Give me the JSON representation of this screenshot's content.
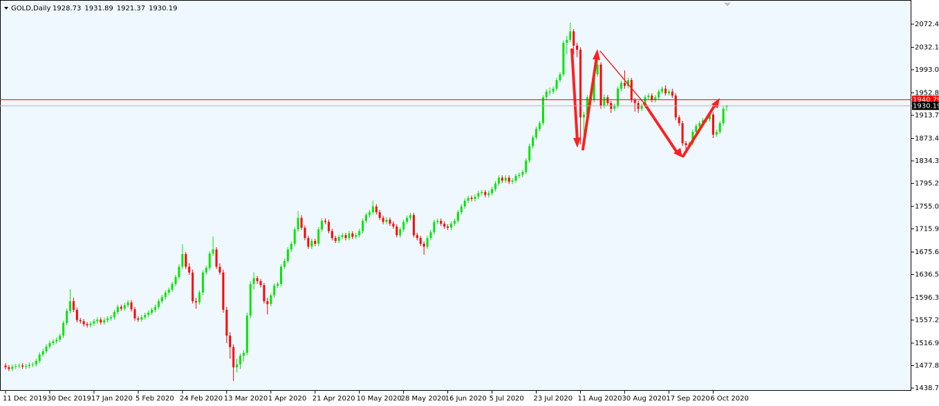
{
  "chart_data": {
    "type": "candlestick",
    "title": "GOLD,Daily",
    "header_values": [
      1928.73,
      1931.89,
      1921.37,
      1930.19
    ],
    "up_color": "#00e600",
    "down_color": "#ff0000",
    "background": "#f0f8ff",
    "ylim": [
      1433.94,
      2109.67
    ],
    "yticks": [
      1438.75,
      1477.85,
      1516.95,
      {
        "value": 1557.2,
        "label": "1557.20"
      },
      {
        "value": 1596.3,
        "label": "1596.30"
      },
      1636.55,
      1675.65,
      {
        "value": 1715.9,
        "label": "1715.90"
      },
      {
        "value": 1755,
        "label": "1755.00"
      },
      1795.25,
      1834.35,
      1873.45,
      {
        "value": 1913.7,
        "label": "1913.70"
      },
      {
        "value": 1952.8,
        "label": "1952.80"
      },
      1993.05,
      2032.15,
      {
        "value": 2072.4,
        "label": "2072.40"
      }
    ],
    "price_lines": [
      {
        "value": 1940.79,
        "color": "#ff0000"
      },
      {
        "value": 1930.19,
        "color": "#b0b0b0"
      }
    ],
    "categories": [
      "11 Dec 2019",
      null,
      null,
      null,
      null,
      null,
      null,
      null,
      null,
      null,
      null,
      null,
      null,
      "30 Dec 2019",
      null,
      null,
      null,
      null,
      null,
      null,
      null,
      null,
      null,
      null,
      null,
      null,
      "17 Jan 2020",
      null,
      null,
      null,
      null,
      null,
      null,
      null,
      null,
      null,
      null,
      null,
      null,
      "5 Feb 2020",
      null,
      null,
      null,
      null,
      null,
      null,
      null,
      null,
      null,
      null,
      null,
      null,
      "24 Feb 2020",
      null,
      null,
      null,
      null,
      null,
      null,
      null,
      null,
      null,
      null,
      null,
      null,
      "13 Mar 2020",
      null,
      null,
      null,
      null,
      null,
      null,
      null,
      null,
      null,
      null,
      null,
      null,
      "1 Apr 2020",
      null,
      null,
      null,
      null,
      null,
      null,
      null,
      null,
      null,
      null,
      null,
      null,
      "21 Apr 2020",
      null,
      null,
      null,
      null,
      null,
      null,
      null,
      null,
      null,
      null,
      null,
      null,
      "10 May 2020",
      null,
      null,
      null,
      null,
      null,
      null,
      null,
      null,
      null,
      null,
      null,
      null,
      "28 May 2020",
      null,
      null,
      null,
      null,
      null,
      null,
      null,
      null,
      null,
      null,
      null,
      null,
      "16 Jun 2020",
      null,
      null,
      null,
      null,
      null,
      null,
      null,
      null,
      null,
      null,
      null,
      null,
      "5 Jul 2020",
      null,
      null,
      null,
      null,
      null,
      null,
      null,
      null,
      null,
      null,
      null,
      null,
      "23 Jul 2020",
      null,
      null,
      null,
      null,
      null,
      null,
      null,
      null,
      null,
      null,
      null,
      null,
      "11 Aug 2020",
      null,
      null,
      null,
      null,
      null,
      null,
      null,
      null,
      null,
      null,
      null,
      null,
      "30 Aug 2020",
      null,
      null,
      null,
      null,
      null,
      null,
      null,
      null,
      null,
      null,
      null,
      null,
      "17 Sep 2020",
      null,
      null,
      null,
      null,
      null,
      null,
      null,
      null,
      null,
      null,
      null,
      null,
      "6 Oct 2020",
      null,
      null,
      null,
      null
    ],
    "open": [
      1478,
      1475,
      1472,
      1476,
      1477,
      1478,
      1476,
      1477,
      1479,
      1480,
      1486,
      1497,
      1503,
      1511,
      1517,
      1520,
      1523,
      1530,
      1552,
      1573,
      1590,
      1575,
      1557,
      1555,
      1550,
      1548,
      1551,
      1555,
      1558,
      1553,
      1557,
      1560,
      1562,
      1571,
      1580,
      1577,
      1583,
      1588,
      1576,
      1560,
      1558,
      1562,
      1566,
      1570,
      1575,
      1580,
      1590,
      1597,
      1605,
      1610,
      1620,
      1632,
      1650,
      1672,
      1650,
      1640,
      1590,
      1588,
      1605,
      1640,
      1648,
      1673,
      1680,
      1650,
      1640,
      1575,
      1530,
      1510,
      1475,
      1480,
      1495,
      1500,
      1565,
      1620,
      1630,
      1625,
      1618,
      1590,
      1585,
      1600,
      1617,
      1620,
      1650,
      1660,
      1680,
      1690,
      1715,
      1735,
      1718,
      1700,
      1685,
      1695,
      1690,
      1715,
      1730,
      1728,
      1712,
      1700,
      1695,
      1702,
      1705,
      1700,
      1708,
      1702,
      1705,
      1712,
      1730,
      1740,
      1745,
      1755,
      1745,
      1735,
      1728,
      1732,
      1725,
      1720,
      1705,
      1715,
      1728,
      1735,
      1740,
      1705,
      1700,
      1690,
      1685,
      1700,
      1710,
      1728,
      1730,
      1725,
      1720,
      1718,
      1725,
      1730,
      1745,
      1755,
      1765,
      1770,
      1768,
      1772,
      1778,
      1780,
      1775,
      1778,
      1785,
      1795,
      1805,
      1800,
      1805,
      1798,
      1800,
      1808,
      1810,
      1815,
      1835,
      1860,
      1875,
      1890,
      1900,
      1945,
      1955,
      1955,
      1960,
      1975,
      1985,
      2040,
      2045,
      2060,
      2035,
      2028,
      1910,
      1915,
      1945,
      1940,
      1985,
      2002,
      1930,
      1945,
      1935,
      1925,
      1930,
      1960,
      1970,
      1965,
      1975,
      1940,
      1935,
      1925,
      1930,
      1945,
      1948,
      1940,
      1945,
      1955,
      1960,
      1952,
      1955,
      1948,
      1910,
      1900,
      1865,
      1862,
      1865,
      1885,
      1895,
      1900,
      1905,
      1907,
      1915,
      1880,
      1885,
      1900,
      1928.73
    ],
    "high": [
      1482,
      1479,
      1480,
      1481,
      1482,
      1482,
      1481,
      1483,
      1484,
      1490,
      1501,
      1507,
      1515,
      1521,
      1524,
      1527,
      1534,
      1556,
      1577,
      1611,
      1596,
      1579,
      1561,
      1559,
      1554,
      1555,
      1559,
      1562,
      1562,
      1561,
      1564,
      1566,
      1575,
      1584,
      1584,
      1587,
      1592,
      1592,
      1580,
      1564,
      1566,
      1570,
      1574,
      1579,
      1584,
      1594,
      1601,
      1609,
      1614,
      1624,
      1636,
      1654,
      1689,
      1676,
      1656,
      1645,
      1596,
      1609,
      1644,
      1652,
      1677,
      1703,
      1684,
      1656,
      1645,
      1580,
      1536,
      1515,
      1490,
      1499,
      1505,
      1570,
      1625,
      1640,
      1634,
      1629,
      1622,
      1596,
      1604,
      1621,
      1624,
      1654,
      1664,
      1684,
      1694,
      1719,
      1747,
      1740,
      1722,
      1704,
      1699,
      1699,
      1719,
      1734,
      1734,
      1732,
      1716,
      1704,
      1706,
      1709,
      1709,
      1712,
      1712,
      1709,
      1716,
      1734,
      1744,
      1749,
      1765,
      1759,
      1749,
      1739,
      1736,
      1736,
      1729,
      1724,
      1719,
      1732,
      1739,
      1744,
      1744,
      1709,
      1704,
      1694,
      1704,
      1714,
      1732,
      1734,
      1734,
      1729,
      1724,
      1729,
      1734,
      1749,
      1759,
      1769,
      1774,
      1774,
      1776,
      1782,
      1784,
      1784,
      1782,
      1789,
      1799,
      1809,
      1809,
      1809,
      1809,
      1804,
      1812,
      1814,
      1819,
      1839,
      1864,
      1879,
      1894,
      1904,
      1949,
      1959,
      1962,
      1964,
      1979,
      1989,
      2044,
      2052,
      2075,
      2064,
      2040,
      2032,
      1920,
      1949,
      1950,
      1989,
      2015,
      2006,
      1950,
      1949,
      1939,
      1934,
      1964,
      1974,
      1992,
      1979,
      1979,
      1944,
      1939,
      1934,
      1949,
      1952,
      1952,
      1949,
      1959,
      1964,
      1966,
      1959,
      1960,
      1952,
      1914,
      1904,
      1869,
      1868,
      1889,
      1899,
      1904,
      1909,
      1911,
      1919,
      1919,
      1889,
      1904,
      1929,
      1931.89
    ],
    "low": [
      1471,
      1468,
      1468,
      1472,
      1473,
      1472,
      1472,
      1473,
      1475,
      1476,
      1482,
      1493,
      1499,
      1507,
      1513,
      1516,
      1519,
      1526,
      1548,
      1569,
      1571,
      1553,
      1551,
      1546,
      1544,
      1544,
      1547,
      1551,
      1549,
      1549,
      1553,
      1556,
      1558,
      1567,
      1573,
      1573,
      1579,
      1572,
      1556,
      1554,
      1554,
      1558,
      1562,
      1566,
      1571,
      1576,
      1586,
      1593,
      1601,
      1606,
      1616,
      1628,
      1646,
      1646,
      1636,
      1586,
      1577,
      1584,
      1601,
      1636,
      1644,
      1669,
      1646,
      1636,
      1570,
      1517,
      1490,
      1451,
      1466,
      1472,
      1485,
      1496,
      1560,
      1610,
      1620,
      1614,
      1586,
      1567,
      1581,
      1596,
      1613,
      1616,
      1646,
      1656,
      1676,
      1686,
      1711,
      1714,
      1696,
      1681,
      1681,
      1686,
      1686,
      1711,
      1724,
      1708,
      1696,
      1691,
      1691,
      1698,
      1696,
      1696,
      1698,
      1698,
      1701,
      1708,
      1726,
      1736,
      1741,
      1741,
      1731,
      1724,
      1724,
      1721,
      1716,
      1701,
      1701,
      1711,
      1724,
      1731,
      1701,
      1696,
      1686,
      1671,
      1681,
      1696,
      1706,
      1724,
      1721,
      1716,
      1714,
      1714,
      1721,
      1726,
      1741,
      1751,
      1761,
      1764,
      1764,
      1768,
      1774,
      1771,
      1771,
      1774,
      1781,
      1791,
      1796,
      1796,
      1794,
      1794,
      1796,
      1804,
      1806,
      1811,
      1831,
      1856,
      1871,
      1886,
      1896,
      1941,
      1948,
      1951,
      1956,
      1971,
      1981,
      2020,
      2041,
      2020,
      2015,
      1863,
      1874,
      1911,
      1930,
      1936,
      1981,
      1925,
      1926,
      1931,
      1918,
      1921,
      1926,
      1956,
      1960,
      1961,
      1936,
      1920,
      1918,
      1921,
      1926,
      1941,
      1936,
      1936,
      1941,
      1951,
      1948,
      1948,
      1944,
      1905,
      1895,
      1860,
      1849,
      1855,
      1861,
      1881,
      1891,
      1896,
      1901,
      1903,
      1874,
      1876,
      1881,
      1896,
      1921.37
    ],
    "close": [
      1475,
      1472,
      1476,
      1477,
      1478,
      1476,
      1477,
      1479,
      1480,
      1486,
      1497,
      1503,
      1511,
      1517,
      1520,
      1523,
      1530,
      1552,
      1573,
      1590,
      1575,
      1557,
      1555,
      1550,
      1548,
      1551,
      1555,
      1558,
      1553,
      1557,
      1560,
      1562,
      1571,
      1580,
      1577,
      1583,
      1588,
      1576,
      1560,
      1558,
      1562,
      1566,
      1570,
      1575,
      1580,
      1590,
      1597,
      1605,
      1610,
      1620,
      1632,
      1650,
      1672,
      1650,
      1640,
      1590,
      1588,
      1605,
      1640,
      1648,
      1673,
      1680,
      1650,
      1640,
      1575,
      1530,
      1510,
      1475,
      1480,
      1495,
      1500,
      1565,
      1620,
      1630,
      1625,
      1618,
      1590,
      1585,
      1600,
      1617,
      1620,
      1650,
      1660,
      1680,
      1690,
      1715,
      1735,
      1718,
      1700,
      1685,
      1695,
      1690,
      1715,
      1730,
      1728,
      1712,
      1700,
      1695,
      1702,
      1705,
      1700,
      1708,
      1702,
      1705,
      1712,
      1730,
      1740,
      1745,
      1755,
      1745,
      1735,
      1728,
      1732,
      1725,
      1720,
      1705,
      1715,
      1728,
      1735,
      1740,
      1705,
      1700,
      1690,
      1685,
      1700,
      1710,
      1728,
      1730,
      1725,
      1720,
      1718,
      1725,
      1730,
      1745,
      1755,
      1765,
      1770,
      1768,
      1772,
      1778,
      1780,
      1775,
      1778,
      1785,
      1795,
      1805,
      1800,
      1805,
      1798,
      1800,
      1808,
      1810,
      1815,
      1835,
      1860,
      1875,
      1890,
      1900,
      1945,
      1955,
      1955,
      1960,
      1975,
      1985,
      2040,
      2045,
      2060,
      2035,
      2028,
      1910,
      1915,
      1945,
      1940,
      1985,
      2002,
      1930,
      1945,
      1935,
      1925,
      1930,
      1960,
      1970,
      1965,
      1975,
      1940,
      1935,
      1925,
      1930,
      1945,
      1948,
      1940,
      1945,
      1955,
      1960,
      1952,
      1955,
      1948,
      1910,
      1900,
      1865,
      1862,
      1865,
      1885,
      1895,
      1900,
      1905,
      1907,
      1915,
      1880,
      1885,
      1900,
      1925,
      1930.19
    ]
  }
}
